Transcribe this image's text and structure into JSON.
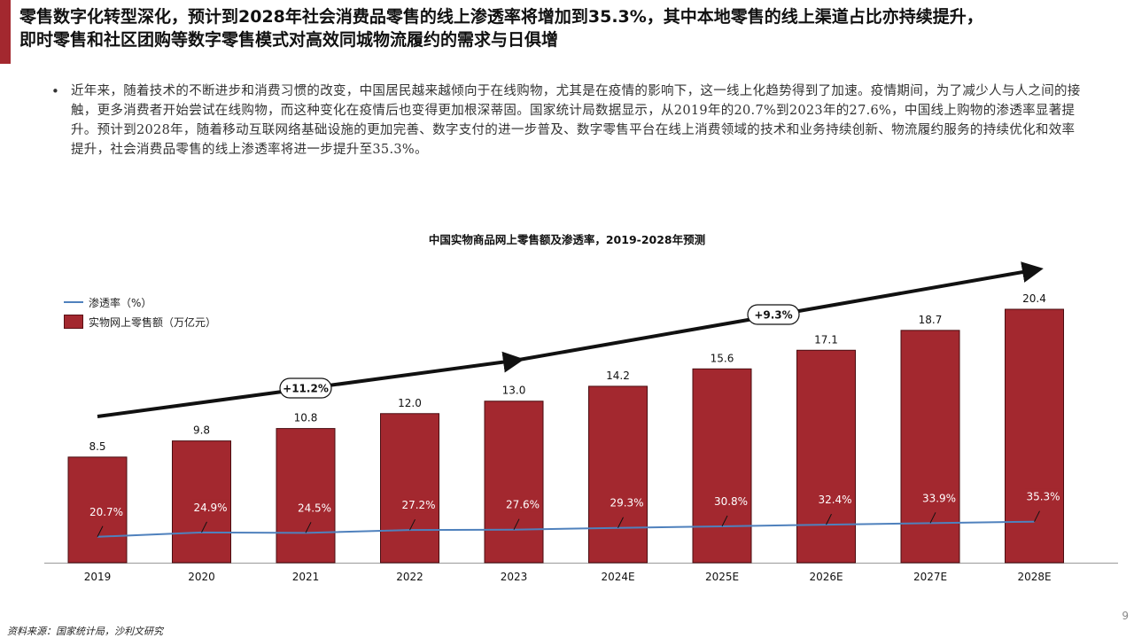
{
  "headline": {
    "line1": "零售数字化转型深化，预计到2028年社会消费品零售的线上渗透率将增加到35.3%，其中本地零售的线上渠道占比亦持续提升，",
    "line2": "即时零售和社区团购等数字零售模式对高效同城物流履约的需求与日俱增"
  },
  "bullet": {
    "text": "近年来，随着技术的不断进步和消费习惯的改变，中国居民越来越倾向于在线购物，尤其是在疫情的影响下，这一线上化趋势得到了加速。疫情期间，为了减少人与人之间的接触，更多消费者开始尝试在线购物，而这种变化在疫情后也变得更加根深蒂固。国家统计局数据显示，从2019年的20.7%到2023年的27.6%，中国线上购物的渗透率显著提升。预计到2028年，随着移动互联网络基础设施的更加完善、数字支付的进一步普及、数字零售平台在线上消费领域的技术和业务持续创新、物流履约服务的持续优化和效率提升，社会消费品零售的线上渗透率将进一步提升至35.3%。"
  },
  "legend": {
    "line_label": "渗透率（%）",
    "bar_label": "实物网上零售额（万亿元）"
  },
  "footer": {
    "source": "资料来源：国家统计局，沙利文研究",
    "page": "9"
  },
  "chart_data": {
    "type": "bar",
    "title": "中国实物商品网上零售额及渗透率，2019-2028年预测",
    "categories": [
      "2019",
      "2020",
      "2021",
      "2022",
      "2023",
      "2024E",
      "2025E",
      "2026E",
      "2027E",
      "2028E"
    ],
    "series": [
      {
        "name": "实物网上零售额（万亿元）",
        "type": "bar",
        "values": [
          8.5,
          9.8,
          10.8,
          12.0,
          13.0,
          14.2,
          15.6,
          17.1,
          18.7,
          20.4
        ],
        "labels": [
          "8.5",
          "9.8",
          "10.8",
          "12.0",
          "13.0",
          "14.2",
          "15.6",
          "17.1",
          "18.7",
          "20.4"
        ],
        "color": "#a3282f"
      },
      {
        "name": "渗透率（%）",
        "type": "line",
        "values": [
          20.7,
          24.9,
          24.5,
          27.2,
          27.6,
          29.3,
          30.8,
          32.4,
          33.9,
          35.3
        ],
        "labels": [
          "20.7%",
          "24.9%",
          "24.5%",
          "27.2%",
          "27.6%",
          "29.3%",
          "30.8%",
          "32.4%",
          "33.9%",
          "35.3%"
        ],
        "color": "#4f81bd"
      }
    ],
    "growth_annotations": [
      "+11.2%",
      "+9.3%"
    ],
    "bar_scale_max": 20.4,
    "line_scale": [
      0,
      100
    ],
    "grid": false,
    "legend_position": "top-left"
  }
}
